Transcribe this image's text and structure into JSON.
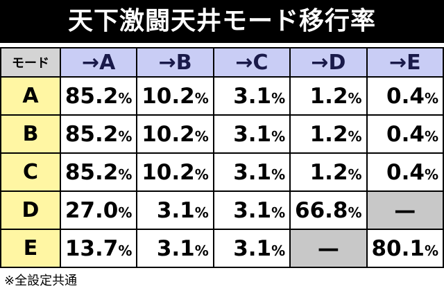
{
  "header": {
    "title": "天下激闘天井モード移行率"
  },
  "table": {
    "corner": "モード",
    "columns": [
      "→A",
      "→B",
      "→C",
      "→D",
      "→E"
    ],
    "rows": [
      {
        "label": "A",
        "cells": [
          {
            "num": "85.2",
            "unit": "%"
          },
          {
            "num": "10.2",
            "unit": "%"
          },
          {
            "num": "3.1",
            "unit": "%"
          },
          {
            "num": "1.2",
            "unit": "%"
          },
          {
            "num": "0.4",
            "unit": "%"
          }
        ]
      },
      {
        "label": "B",
        "cells": [
          {
            "num": "85.2",
            "unit": "%"
          },
          {
            "num": "10.2",
            "unit": "%"
          },
          {
            "num": "3.1",
            "unit": "%"
          },
          {
            "num": "1.2",
            "unit": "%"
          },
          {
            "num": "0.4",
            "unit": "%"
          }
        ]
      },
      {
        "label": "C",
        "cells": [
          {
            "num": "85.2",
            "unit": "%"
          },
          {
            "num": "10.2",
            "unit": "%"
          },
          {
            "num": "3.1",
            "unit": "%"
          },
          {
            "num": "1.2",
            "unit": "%"
          },
          {
            "num": "0.4",
            "unit": "%"
          }
        ]
      },
      {
        "label": "D",
        "cells": [
          {
            "num": "27.0",
            "unit": "%"
          },
          {
            "num": "3.1",
            "unit": "%"
          },
          {
            "num": "3.1",
            "unit": "%"
          },
          {
            "num": "66.8",
            "unit": "%"
          },
          {
            "num": "—"
          }
        ]
      },
      {
        "label": "E",
        "cells": [
          {
            "num": "13.7",
            "unit": "%"
          },
          {
            "num": "3.1",
            "unit": "%"
          },
          {
            "num": "3.1",
            "unit": "%"
          },
          {
            "num": "—"
          },
          {
            "num": "80.1",
            "unit": "%"
          }
        ]
      }
    ]
  },
  "footer": {
    "note": "※全設定共通"
  }
}
